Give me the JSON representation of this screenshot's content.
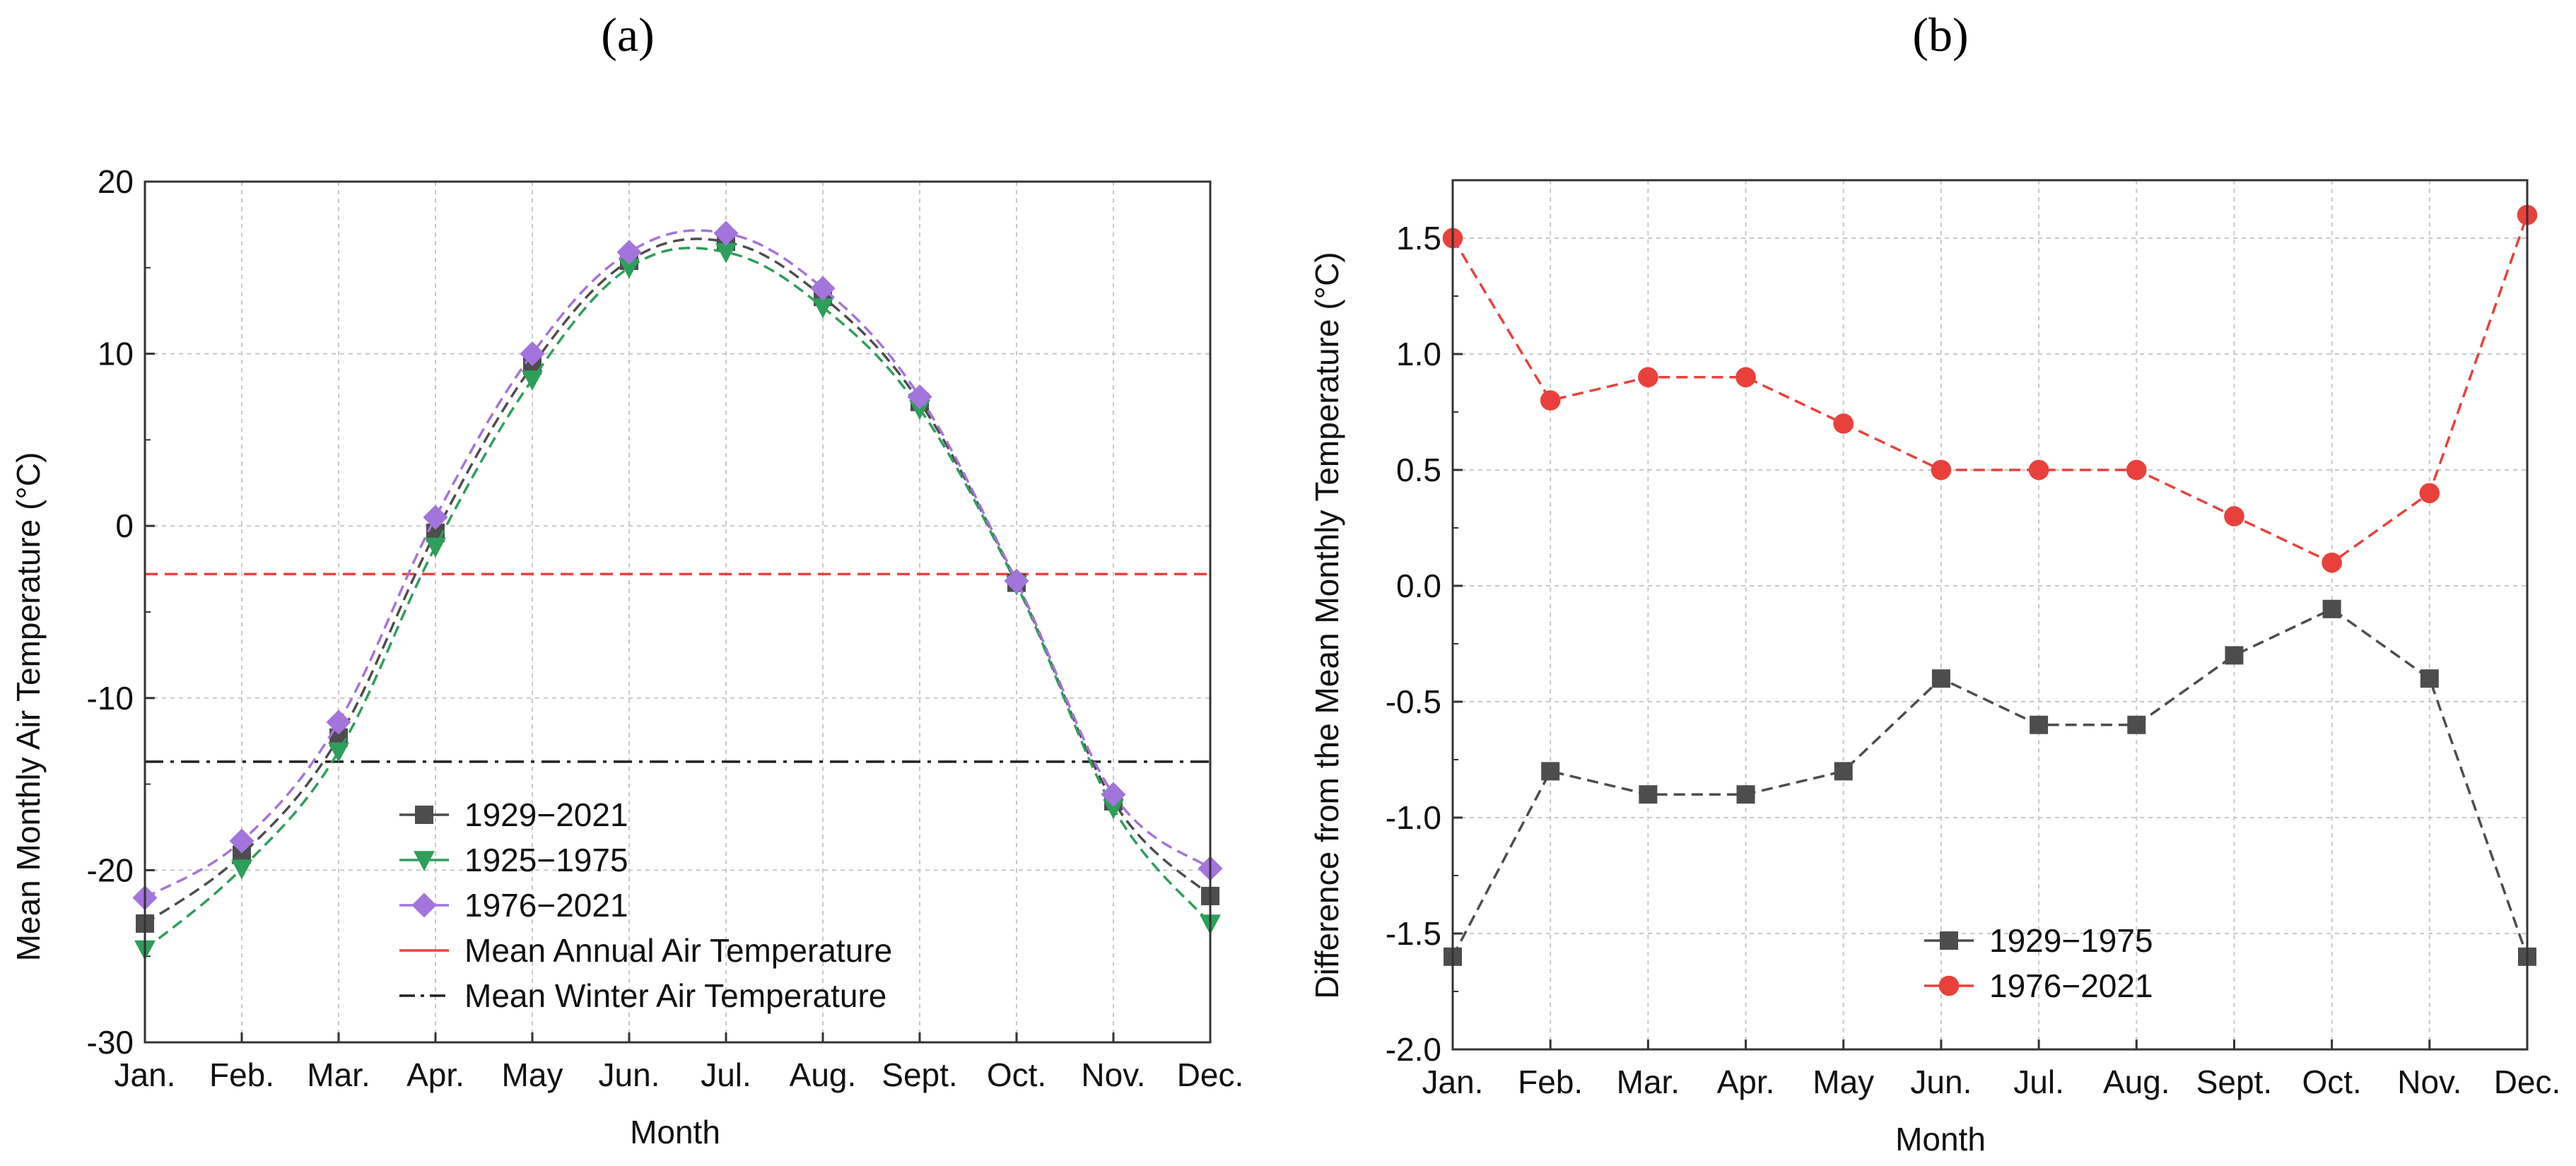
{
  "chart_data": [
    {
      "panel_label": "(a)",
      "type": "line",
      "xlabel": "Month",
      "ylabel": "Mean Monthly Air Temperature (°C)",
      "categories": [
        "Jan.",
        "Feb.",
        "Mar.",
        "Apr.",
        "May",
        "Jun.",
        "Jul.",
        "Aug.",
        "Sept.",
        "Oct.",
        "Nov.",
        "Dec."
      ],
      "ylim": [
        -30,
        20
      ],
      "yticks": [
        -30,
        -20,
        -10,
        0,
        10,
        20
      ],
      "grid": true,
      "legend_position": "bottom-center",
      "series": [
        {
          "name": "1929−2021",
          "marker": "square",
          "color": "#4d4d4d",
          "values": [
            -23.1,
            -19.1,
            -12.3,
            -0.4,
            9.3,
            15.4,
            16.5,
            13.3,
            7.2,
            -3.3,
            -16.0,
            -21.5
          ]
        },
        {
          "name": "1925−1975",
          "marker": "triangle-down",
          "color": "#2e9e5b",
          "values": [
            -24.6,
            -19.9,
            -13.1,
            -1.2,
            8.5,
            15.0,
            15.9,
            12.7,
            6.8,
            -3.4,
            -16.4,
            -23.1
          ]
        },
        {
          "name": "1976−2021",
          "marker": "diamond",
          "color": "#a374dc",
          "values": [
            -21.6,
            -18.3,
            -11.4,
            0.5,
            10.0,
            15.9,
            17.0,
            13.8,
            7.5,
            -3.2,
            -15.6,
            -19.9
          ]
        }
      ],
      "reference_lines": [
        {
          "name": "Mean Annual Air Temperature",
          "value": -2.8,
          "style": "dashed",
          "color": "#e8413c"
        },
        {
          "name": "Mean Winter Air Temperature",
          "value": -13.7,
          "style": "dash-dot",
          "color": "#222222"
        }
      ]
    },
    {
      "panel_label": "(b)",
      "type": "line",
      "xlabel": "Month",
      "ylabel": "Difference from the Mean Monthly Temperature (°C)",
      "categories": [
        "Jan.",
        "Feb.",
        "Mar.",
        "Apr.",
        "May",
        "Jun.",
        "Jul.",
        "Aug.",
        "Sept.",
        "Oct.",
        "Nov.",
        "Dec."
      ],
      "ylim": [
        -2.0,
        1.75
      ],
      "yticks": [
        -2.0,
        -1.5,
        -1.0,
        -0.5,
        0.0,
        0.5,
        1.0,
        1.5
      ],
      "ytick_labels": [
        "-2.0",
        "-1.5",
        "-1.0",
        "-0.5",
        "0.0",
        "0.5",
        "1.0",
        "1.5"
      ],
      "grid": true,
      "legend_position": "bottom-center",
      "series": [
        {
          "name": "1929−1975",
          "marker": "square",
          "color": "#4d4d4d",
          "values": [
            -1.6,
            -0.8,
            -0.9,
            -0.9,
            -0.8,
            -0.4,
            -0.6,
            -0.6,
            -0.3,
            -0.1,
            -0.4,
            -1.6
          ]
        },
        {
          "name": "1976−2021",
          "marker": "circle",
          "color": "#e8413c",
          "values": [
            1.5,
            0.8,
            0.9,
            0.9,
            0.7,
            0.5,
            0.5,
            0.5,
            0.3,
            0.1,
            0.4,
            1.6
          ]
        }
      ]
    }
  ]
}
